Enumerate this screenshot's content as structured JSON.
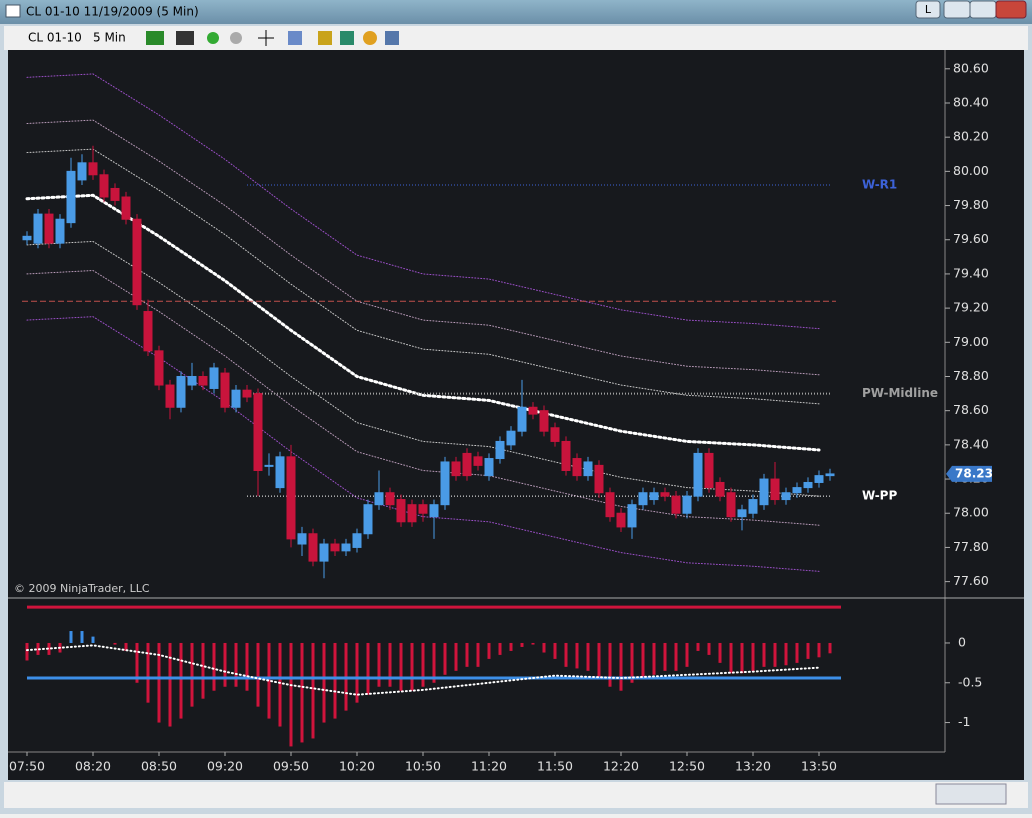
{
  "window": {
    "title": "CL 01-10  11/19/2009 (5 Min)",
    "button": "L"
  },
  "toolbar": {
    "instrument": "CL 01-10",
    "interval": "5 Min"
  },
  "chart_data": [
    {
      "type": "candlestick",
      "copyright": "© 2009 NinjaTrader, LLC",
      "categories": [
        "07:50",
        null,
        null,
        null,
        null,
        null,
        "08:20",
        null,
        null,
        null,
        null,
        null,
        "08:50",
        null,
        null,
        null,
        null,
        null,
        "09:20",
        null,
        null,
        null,
        null,
        null,
        "09:50",
        null,
        null,
        null,
        null,
        null,
        "10:20",
        null,
        null,
        null,
        null,
        null,
        "10:50",
        null,
        null,
        null,
        null,
        null,
        "11:20",
        null,
        null,
        null,
        null,
        null,
        "11:50",
        null,
        null,
        null,
        null,
        null,
        "12:20",
        null,
        null,
        null,
        null,
        null,
        "12:50",
        null,
        null,
        null,
        null,
        null,
        "13:20",
        null,
        null,
        null,
        null,
        null,
        "13:50",
        null
      ],
      "open": [
        79.6,
        79.58,
        79.75,
        79.58,
        79.7,
        79.95,
        80.05,
        79.98,
        79.9,
        79.85,
        79.72,
        79.18,
        78.95,
        78.75,
        78.62,
        78.75,
        78.8,
        78.73,
        78.82,
        78.62,
        78.72,
        78.7,
        78.28,
        78.15,
        78.33,
        77.82,
        77.88,
        77.72,
        77.82,
        77.78,
        77.8,
        77.88,
        78.05,
        78.12,
        78.08,
        78.05,
        78.05,
        77.98,
        78.05,
        78.3,
        78.35,
        78.33,
        78.22,
        78.32,
        78.4,
        78.48,
        78.62,
        78.6,
        78.5,
        78.42,
        78.32,
        78.22,
        78.28,
        78.12,
        78.0,
        77.92,
        78.05,
        78.08,
        78.12,
        78.1,
        78.0,
        78.1,
        78.35,
        78.18,
        78.12,
        77.98,
        78.0,
        78.05,
        78.2,
        78.08,
        78.12,
        78.15,
        78.18,
        78.22
      ],
      "high": [
        79.65,
        79.78,
        79.78,
        79.75,
        80.08,
        80.1,
        80.15,
        80.01,
        79.93,
        79.88,
        79.75,
        79.25,
        78.98,
        78.78,
        78.83,
        78.88,
        78.83,
        78.88,
        78.85,
        78.75,
        78.75,
        78.73,
        78.35,
        78.36,
        78.4,
        77.92,
        77.91,
        77.85,
        77.85,
        77.85,
        77.91,
        78.08,
        78.25,
        78.15,
        78.11,
        78.08,
        78.08,
        78.08,
        78.33,
        78.33,
        78.38,
        78.36,
        78.35,
        78.45,
        78.51,
        78.78,
        78.65,
        78.63,
        78.53,
        78.45,
        78.35,
        78.33,
        78.31,
        78.15,
        78.03,
        78.08,
        78.15,
        78.15,
        78.15,
        78.13,
        78.13,
        78.38,
        78.38,
        78.21,
        78.15,
        78.05,
        78.11,
        78.23,
        78.3,
        78.15,
        78.18,
        78.21,
        78.25,
        78.26
      ],
      "low": [
        79.57,
        79.55,
        79.55,
        79.55,
        79.67,
        79.92,
        79.95,
        79.82,
        79.8,
        79.69,
        79.19,
        78.92,
        78.72,
        78.55,
        78.59,
        78.72,
        78.72,
        78.7,
        78.59,
        78.59,
        78.65,
        78.1,
        78.22,
        78.12,
        77.8,
        77.75,
        77.69,
        77.62,
        77.75,
        77.75,
        77.77,
        77.85,
        78.02,
        78.02,
        77.92,
        77.92,
        77.95,
        77.85,
        78.02,
        78.19,
        78.19,
        78.25,
        78.19,
        78.29,
        78.37,
        78.45,
        78.55,
        78.45,
        78.39,
        78.22,
        78.19,
        78.19,
        78.09,
        77.95,
        77.89,
        77.85,
        78.02,
        78.05,
        78.07,
        77.97,
        77.97,
        78.07,
        78.12,
        78.07,
        77.95,
        77.9,
        77.97,
        78.02,
        78.05,
        78.05,
        78.09,
        78.12,
        78.15,
        78.19
      ],
      "close": [
        79.62,
        79.75,
        79.58,
        79.72,
        80.0,
        80.05,
        79.98,
        79.85,
        79.83,
        79.72,
        79.22,
        78.95,
        78.75,
        78.62,
        78.8,
        78.8,
        78.75,
        78.85,
        78.62,
        78.72,
        78.68,
        78.25,
        78.28,
        78.33,
        77.85,
        77.88,
        77.72,
        77.82,
        77.78,
        77.82,
        77.88,
        78.05,
        78.12,
        78.05,
        77.95,
        77.95,
        78.0,
        78.05,
        78.3,
        78.22,
        78.22,
        78.28,
        78.32,
        78.42,
        78.48,
        78.62,
        78.58,
        78.48,
        78.42,
        78.25,
        78.22,
        78.3,
        78.12,
        77.98,
        77.92,
        78.05,
        78.12,
        78.12,
        78.1,
        78.0,
        78.1,
        78.35,
        78.15,
        78.1,
        77.98,
        78.02,
        78.08,
        78.2,
        78.08,
        78.12,
        78.15,
        78.18,
        78.22,
        78.23
      ],
      "up_color": "#4a9be6",
      "down_color": "#c8143c",
      "ylim": [
        77.51,
        80.71
      ],
      "yticks": [
        {
          "value": 80.6,
          "label": "80.60"
        },
        {
          "value": 80.4,
          "label": "80.40"
        },
        {
          "value": 80.2,
          "label": "80.20"
        },
        {
          "value": 80.0,
          "label": "80.00"
        },
        {
          "value": 79.8,
          "label": "79.80"
        },
        {
          "value": 79.6,
          "label": "79.60"
        },
        {
          "value": 79.4,
          "label": "79.40"
        },
        {
          "value": 79.2,
          "label": "79.20"
        },
        {
          "value": 79.0,
          "label": "79.00"
        },
        {
          "value": 78.8,
          "label": "78.80"
        },
        {
          "value": 78.6,
          "label": "78.60"
        },
        {
          "value": 78.4,
          "label": "78.40"
        },
        {
          "value": 78.2,
          "label": "78.20"
        },
        {
          "value": 78.0,
          "label": "78.00"
        },
        {
          "value": 77.8,
          "label": "77.80"
        },
        {
          "value": 77.6,
          "label": "77.60"
        }
      ],
      "bands": {
        "x": [
          "07:50",
          "08:20",
          "08:50",
          "09:20",
          "09:50",
          "10:20",
          "10:50",
          "11:20",
          "11:50",
          "12:20",
          "12:50",
          "13:20",
          "13:50"
        ],
        "series": [
          {
            "color": "#9b4fc8",
            "values": [
              80.55,
              80.57,
              80.33,
              80.07,
              79.78,
              79.51,
              79.4,
              79.37,
              79.28,
              79.19,
              79.13,
              79.11,
              79.08
            ]
          },
          {
            "color": "#b89ab8",
            "values": [
              80.28,
              80.3,
              80.06,
              79.8,
              79.51,
              79.24,
              79.13,
              79.1,
              79.01,
              78.92,
              78.86,
              78.84,
              78.81
            ]
          },
          {
            "color": "#c8c8c8",
            "values": [
              80.11,
              80.13,
              79.89,
              79.63,
              79.34,
              79.07,
              78.96,
              78.93,
              78.84,
              78.75,
              78.69,
              78.67,
              78.64
            ]
          },
          {
            "color": "#ffffff",
            "values": [
              79.84,
              79.86,
              79.62,
              79.36,
              79.07,
              78.8,
              78.69,
              78.66,
              78.57,
              78.48,
              78.42,
              78.4,
              78.37
            ]
          },
          {
            "color": "#c8c8c8",
            "values": [
              79.57,
              79.59,
              79.35,
              79.09,
              78.8,
              78.53,
              78.42,
              78.39,
              78.3,
              78.21,
              78.15,
              78.13,
              78.1
            ]
          },
          {
            "color": "#b89ab8",
            "values": [
              79.4,
              79.42,
              79.18,
              78.92,
              78.63,
              78.36,
              78.25,
              78.22,
              78.13,
              78.04,
              77.98,
              77.96,
              77.93
            ]
          },
          {
            "color": "#9b4fc8",
            "values": [
              79.13,
              79.15,
              78.91,
              78.65,
              78.36,
              78.09,
              77.98,
              77.95,
              77.86,
              77.77,
              77.71,
              77.69,
              77.66
            ]
          }
        ]
      },
      "levels": [
        {
          "value": 79.92,
          "label": "W-R1",
          "color": "#3c62d8"
        },
        {
          "value": 79.24,
          "color": "#c0504d"
        },
        {
          "value": 78.7,
          "label": "PW-Midline",
          "color": "#a0a0a0"
        },
        {
          "value": 78.1,
          "label": "W-PP",
          "color": "#ffffff"
        }
      ],
      "last_price": 78.23
    },
    {
      "type": "bar",
      "values": [
        -0.22,
        -0.15,
        -0.15,
        -0.12,
        0.15,
        0.15,
        0.08,
        0,
        -0.02,
        -0.1,
        -0.5,
        -0.75,
        -1.0,
        -1.05,
        -0.95,
        -0.8,
        -0.7,
        -0.6,
        -0.55,
        -0.55,
        -0.6,
        -0.8,
        -0.95,
        -1.05,
        -1.3,
        -1.25,
        -1.2,
        -1.0,
        -0.95,
        -0.85,
        -0.75,
        -0.65,
        -0.55,
        -0.55,
        -0.6,
        -0.6,
        -0.55,
        -0.5,
        -0.4,
        -0.35,
        -0.3,
        -0.3,
        -0.2,
        -0.15,
        -0.1,
        -0.05,
        -0.02,
        -0.12,
        -0.2,
        -0.3,
        -0.32,
        -0.35,
        -0.45,
        -0.55,
        -0.6,
        -0.5,
        -0.45,
        -0.4,
        -0.35,
        -0.35,
        -0.3,
        -0.1,
        -0.15,
        -0.25,
        -0.38,
        -0.38,
        -0.35,
        -0.3,
        -0.3,
        -0.28,
        -0.25,
        -0.2,
        -0.18,
        -0.13
      ],
      "up_color": "#3d8fe8",
      "down_color": "#d0143c",
      "ylim": [
        -1.37,
        0.54
      ],
      "yticks": [
        0,
        -0.5,
        -1
      ],
      "levels": [
        {
          "value": 0.45,
          "color": "#d0143c"
        },
        {
          "value": -0.44,
          "color": "#3d8fe8"
        }
      ],
      "signal": {
        "x": [
          "07:50",
          "08:20",
          "08:50",
          "09:20",
          "09:50",
          "10:20",
          "10:50",
          "11:20",
          "11:50",
          "12:20",
          "12:50",
          "13:20",
          "13:50"
        ],
        "values": [
          -0.09,
          -0.03,
          -0.15,
          -0.36,
          -0.53,
          -0.65,
          -0.59,
          -0.5,
          -0.41,
          -0.44,
          -0.4,
          -0.36,
          -0.31
        ],
        "color": "#ffffff"
      }
    }
  ]
}
